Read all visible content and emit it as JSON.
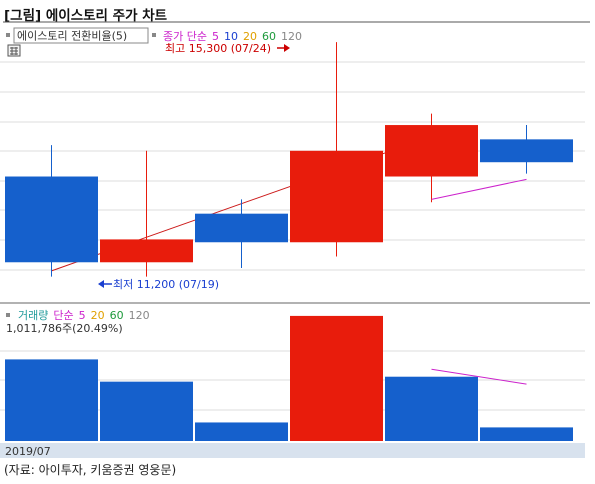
{
  "title": "[그림] 에이스토리 주가 차트",
  "source": "(자료: 아이투자, 키움증권 영웅문)",
  "top_legend": {
    "series_box": "에이스토리 전환비율(5)",
    "ma_prefix": "종가 단순",
    "ma_periods": [
      {
        "label": "5",
        "color": "#cc22cc"
      },
      {
        "label": "10",
        "color": "#1a3fd0"
      },
      {
        "label": "20",
        "color": "#e0a000"
      },
      {
        "label": "60",
        "color": "#1e9a3c"
      },
      {
        "label": "120",
        "color": "#888888"
      }
    ],
    "prefix_color": "#cc22cc"
  },
  "volume_legend": {
    "name": "거래량",
    "ma_prefix": "단순",
    "ma_periods": [
      {
        "label": "5",
        "color": "#cc22cc"
      },
      {
        "label": "20",
        "color": "#e0a000"
      },
      {
        "label": "60",
        "color": "#1e9a3c"
      },
      {
        "label": "120",
        "color": "#888888"
      }
    ],
    "name_color": "#1e9a9a",
    "prefix_color": "#cc22cc",
    "value_text": "1,011,786주(20.49%)"
  },
  "annotations": {
    "high": "최고 15,300 (07/24)",
    "low": "최저 11,200 (07/19)"
  },
  "x_label": "2019/07",
  "colors": {
    "up": "#e81c0c",
    "down": "#1560cc",
    "ma5": "#cc22cc",
    "trend": "#cc1a1a",
    "axis_bar": "#d8e2ee"
  },
  "chart_data": [
    {
      "type": "candlestick",
      "ylim": [
        11000,
        15600
      ],
      "grid": true,
      "candles": [
        {
          "open": 12950,
          "high": 13500,
          "low": 11200,
          "close": 11450,
          "direction": "down"
        },
        {
          "open": 11450,
          "high": 13400,
          "low": 11200,
          "close": 11850,
          "direction": "up"
        },
        {
          "open": 12300,
          "high": 12550,
          "low": 11350,
          "close": 11800,
          "direction": "down"
        },
        {
          "open": 11800,
          "high": 15300,
          "low": 11550,
          "close": 13400,
          "direction": "up"
        },
        {
          "open": 12950,
          "high": 14050,
          "low": 12500,
          "close": 13850,
          "direction": "up"
        },
        {
          "open": 13600,
          "high": 13850,
          "low": 13000,
          "close": 13200,
          "direction": "down"
        }
      ],
      "ma5": [
        {
          "index": 4,
          "value": 12550
        },
        {
          "index": 5,
          "value": 12900
        }
      ],
      "trendline": [
        {
          "index": 0,
          "value": 11300
        },
        {
          "index": 4,
          "value": 13650
        }
      ]
    },
    {
      "type": "bar",
      "ylim": [
        0,
        1100000
      ],
      "values": [
        660000,
        480000,
        150000,
        1011786,
        520000,
        110000
      ],
      "colors": [
        "down",
        "down",
        "down",
        "up",
        "down",
        "down"
      ],
      "ma5": [
        {
          "index": 4,
          "value": 580000
        },
        {
          "index": 5,
          "value": 460000
        }
      ]
    }
  ]
}
